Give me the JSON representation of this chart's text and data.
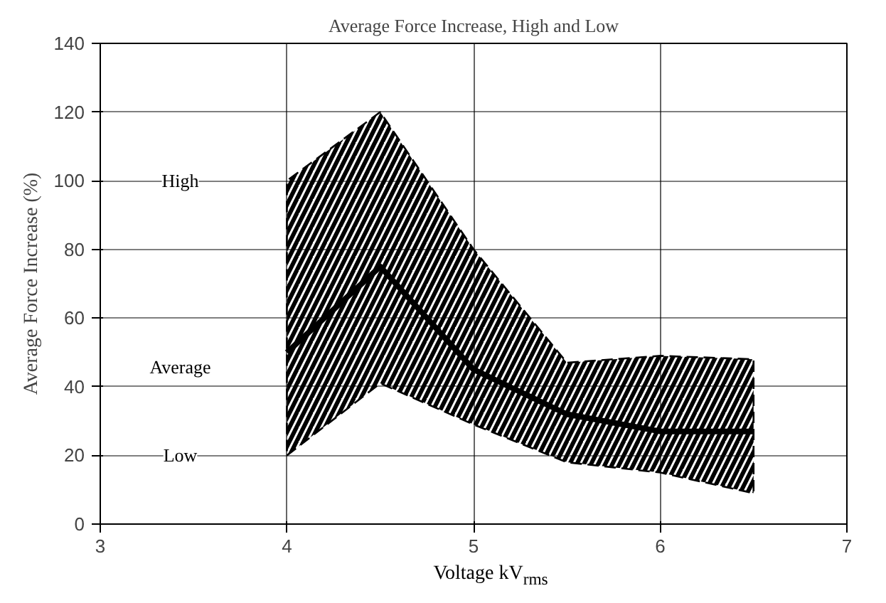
{
  "chart_data": {
    "type": "line",
    "title": "Average Force Increase, High and Low",
    "xlabel": "Voltage kV$_{rms}$",
    "ylabel": "Average Force Increase (%)",
    "xlim": [
      3,
      7
    ],
    "xticks": [
      3,
      4,
      5,
      6,
      7
    ],
    "ylim": [
      0,
      140
    ],
    "yticks": [
      0,
      20,
      40,
      60,
      80,
      100,
      120,
      140
    ],
    "grid": true,
    "x": [
      4,
      4.5,
      5,
      5.5,
      6,
      6.5
    ],
    "series": [
      {
        "color": "#000000",
        "values": [
          50,
          75,
          45,
          32,
          27,
          27
        ],
        "lower": [
          20,
          41,
          29,
          18,
          15,
          9
        ],
        "upper": [
          100,
          120,
          80,
          47,
          49,
          48
        ]
      }
    ],
    "annotations": [
      "High",
      "Average",
      "Low"
    ]
  }
}
